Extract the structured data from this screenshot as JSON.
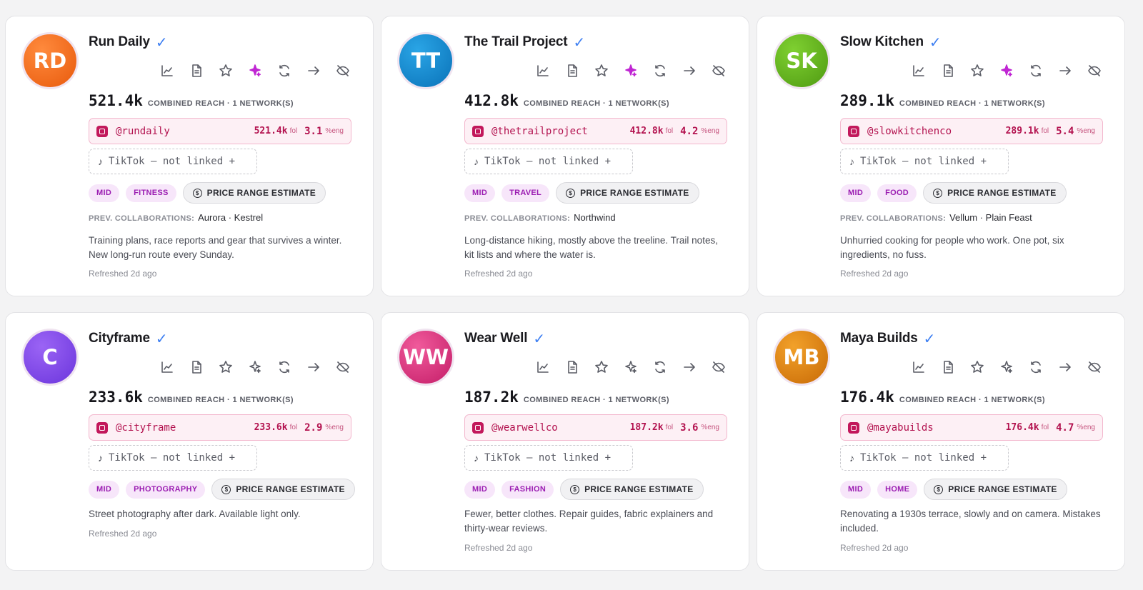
{
  "common": {
    "reach_label": "COMBINED REACH · 1 NETWORK(S)",
    "fol_unit": "fol",
    "eng_unit": "%eng",
    "tiktok_text": "TikTok — not linked +",
    "tier": "MID",
    "price_label": "PRICE RANGE ESTIMATE",
    "prev_label": "PREV. COLLABORATIONS:",
    "refreshed": "Refreshed 2d ago",
    "verified_glyph": "✓"
  },
  "action_icons": [
    "analytics-icon",
    "document-icon",
    "star-icon",
    "sparkle-icon",
    "refresh-icon",
    "arrow-right-icon",
    "hide-icon"
  ],
  "colors": {
    "accent_pink": "#b3124f",
    "tag_purple": "#9b1db2",
    "verified_blue": "#3d7ff2",
    "sparkle_active": "#c026d3"
  },
  "creators": [
    {
      "initials": "RD",
      "name": "Run Daily",
      "reach": "521.4k",
      "handle": "@rundaily",
      "followers": "521.4k",
      "engagement": "3.1",
      "niche": "FITNESS",
      "collabs": "Aurora · Kestrel",
      "bio": "Training plans, race reports and gear that survives a winter. New long-run route every Sunday.",
      "avatar_color": "#f06a1d",
      "sparkle_active": true
    },
    {
      "initials": "TT",
      "name": "The Trail Project",
      "reach": "412.8k",
      "handle": "@thetrailproject",
      "followers": "412.8k",
      "engagement": "4.2",
      "niche": "TRAVEL",
      "collabs": "Northwind",
      "bio": "Long-distance hiking, mostly above the treeline. Trail notes, kit lists and where the water is.",
      "avatar_color": "#1389cf",
      "sparkle_active": true
    },
    {
      "initials": "SK",
      "name": "Slow Kitchen",
      "reach": "289.1k",
      "handle": "@slowkitchenco",
      "followers": "289.1k",
      "engagement": "5.4",
      "niche": "FOOD",
      "collabs": "Vellum · Plain Feast",
      "bio": "Unhurried cooking for people who work. One pot, six ingredients, no fuss.",
      "avatar_color": "#63b11f",
      "sparkle_active": true
    },
    {
      "initials": "C",
      "name": "Cityframe",
      "reach": "233.6k",
      "handle": "@cityframe",
      "followers": "233.6k",
      "engagement": "2.9",
      "niche": "PHOTOGRAPHY",
      "collabs": "",
      "bio": "Street photography after dark. Available light only.",
      "avatar_color": "#7c46e8",
      "sparkle_active": false
    },
    {
      "initials": "WW",
      "name": "Wear Well",
      "reach": "187.2k",
      "handle": "@wearwellco",
      "followers": "187.2k",
      "engagement": "3.6",
      "niche": "FASHION",
      "collabs": "",
      "bio": "Fewer, better clothes. Repair guides, fabric explainers and thirty-wear reviews.",
      "avatar_color": "#d8337f",
      "sparkle_active": false
    },
    {
      "initials": "MB",
      "name": "Maya Builds",
      "reach": "176.4k",
      "handle": "@mayabuilds",
      "followers": "176.4k",
      "engagement": "4.7",
      "niche": "HOME",
      "collabs": "",
      "bio": "Renovating a 1930s terrace, slowly and on camera. Mistakes included.",
      "avatar_color": "#dc8015",
      "sparkle_active": false
    }
  ]
}
